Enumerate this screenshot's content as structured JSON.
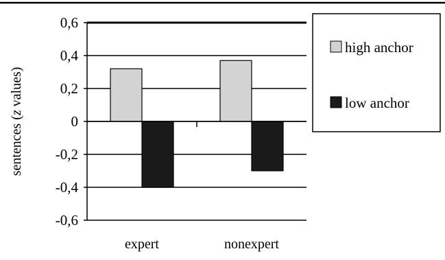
{
  "chart_data": {
    "type": "bar",
    "categories": [
      "expert",
      "nonexpert"
    ],
    "series": [
      {
        "name": "high anchor",
        "color": "#d3d3d3",
        "values": [
          0.32,
          0.37
        ]
      },
      {
        "name": "low anchor",
        "color": "#1a1a1a",
        "values": [
          -0.4,
          -0.3
        ]
      }
    ],
    "ylabel_parts": [
      "sentences (",
      "z",
      " values)"
    ],
    "ylim": [
      -0.6,
      0.6
    ],
    "yticks": [
      0.6,
      0.4,
      0.2,
      0,
      -0.2,
      -0.4,
      -0.6
    ],
    "ytick_labels": [
      "0,6",
      "0,4",
      "0,2",
      "0",
      "-0,2",
      "-0,4",
      "-0,6"
    ],
    "grid": true,
    "legend_position": "right"
  }
}
